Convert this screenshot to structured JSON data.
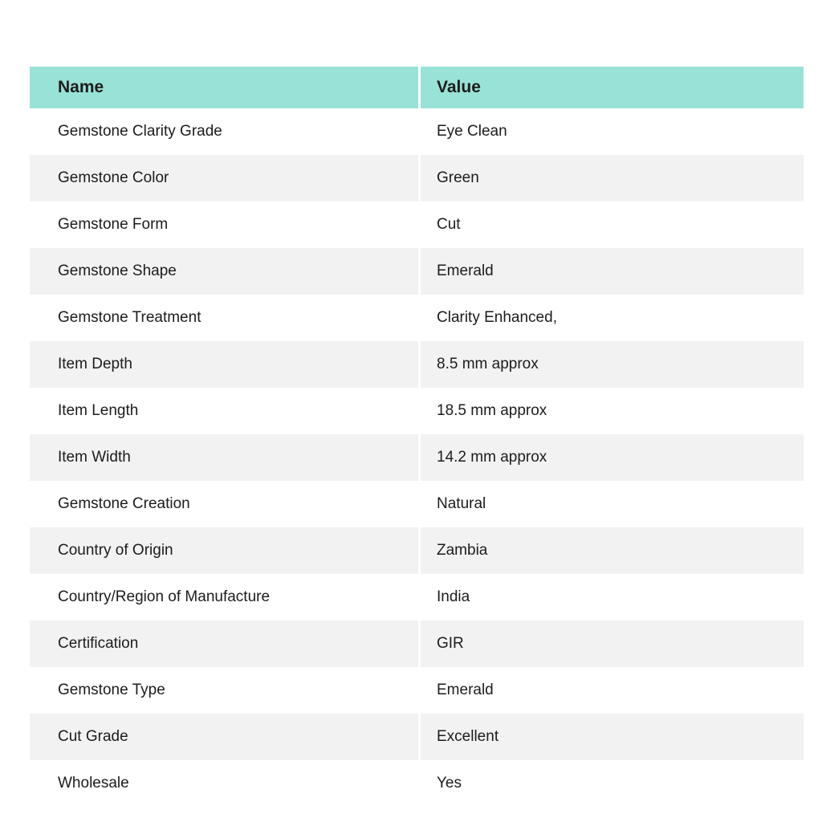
{
  "table": {
    "columns": [
      {
        "label": "Name"
      },
      {
        "label": "Value"
      }
    ],
    "rows": [
      {
        "name": "Gemstone Clarity Grade",
        "value": "Eye Clean"
      },
      {
        "name": "Gemstone Color",
        "value": "Green"
      },
      {
        "name": "Gemstone Form",
        "value": "Cut"
      },
      {
        "name": "Gemstone Shape",
        "value": "Emerald"
      },
      {
        "name": "Gemstone Treatment",
        "value": "Clarity Enhanced,"
      },
      {
        "name": "Item Depth",
        "value": "8.5 mm approx"
      },
      {
        "name": "Item Length",
        "value": "18.5 mm approx"
      },
      {
        "name": "Item Width",
        "value": "14.2 mm approx"
      },
      {
        "name": "Gemstone Creation",
        "value": "Natural"
      },
      {
        "name": "Country of Origin",
        "value": "Zambia"
      },
      {
        "name": "Country/Region of Manufacture",
        "value": "India"
      },
      {
        "name": "Certification",
        "value": "GIR"
      },
      {
        "name": "Gemstone Type",
        "value": "Emerald"
      },
      {
        "name": "Cut Grade",
        "value": "Excellent"
      },
      {
        "name": "Wholesale",
        "value": "Yes"
      }
    ],
    "colors": {
      "header_bg": "#99e2d7",
      "stripe_bg": "#f2f2f2",
      "text": "#1c1c1c",
      "divider": "#ffffff"
    }
  }
}
